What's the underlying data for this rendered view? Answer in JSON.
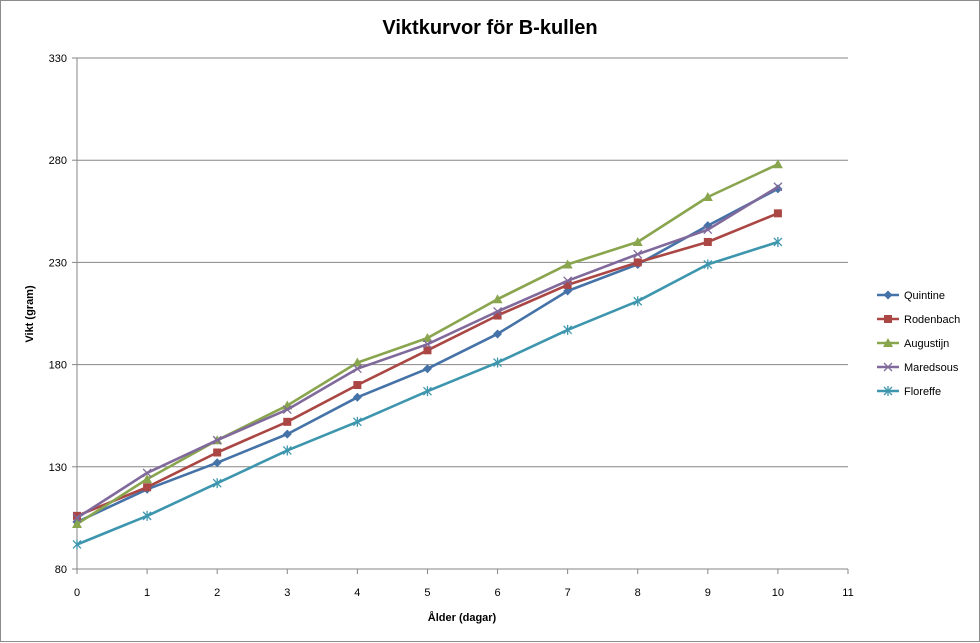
{
  "chart_data": {
    "type": "line",
    "title": "Viktkurvor för B-kullen",
    "xlabel": "Ålder (dagar)",
    "ylabel": "Vikt (gram)",
    "xlim": [
      0,
      11
    ],
    "ylim": [
      80,
      330
    ],
    "x_ticks": [
      0,
      1,
      2,
      3,
      4,
      5,
      6,
      7,
      8,
      9,
      10,
      11
    ],
    "y_ticks": [
      80,
      130,
      180,
      230,
      280,
      330
    ],
    "grid": "horizontal-major",
    "legend_position": "right",
    "x": [
      0,
      1,
      2,
      3,
      4,
      5,
      6,
      7,
      8,
      9,
      10
    ],
    "series": [
      {
        "name": "Quintine",
        "color": "#4572a7",
        "marker": "diamond",
        "values": [
          103,
          119,
          132,
          146,
          164,
          178,
          195,
          216,
          229,
          248,
          266
        ]
      },
      {
        "name": "Rodenbach",
        "color": "#aa4643",
        "marker": "square",
        "values": [
          106,
          120,
          137,
          152,
          170,
          187,
          204,
          219,
          230,
          240,
          254
        ]
      },
      {
        "name": "Augustijn",
        "color": "#89a54e",
        "marker": "triangle",
        "values": [
          102,
          124,
          143,
          160,
          181,
          193,
          212,
          229,
          240,
          262,
          278
        ]
      },
      {
        "name": "Maredsous",
        "color": "#80699b",
        "marker": "x",
        "values": [
          105,
          127,
          143,
          158,
          178,
          190,
          206,
          221,
          234,
          246,
          267
        ]
      },
      {
        "name": "Floreffe",
        "color": "#3d96ae",
        "marker": "star",
        "values": [
          92,
          106,
          122,
          138,
          152,
          167,
          181,
          197,
          211,
          229,
          240
        ]
      }
    ]
  }
}
